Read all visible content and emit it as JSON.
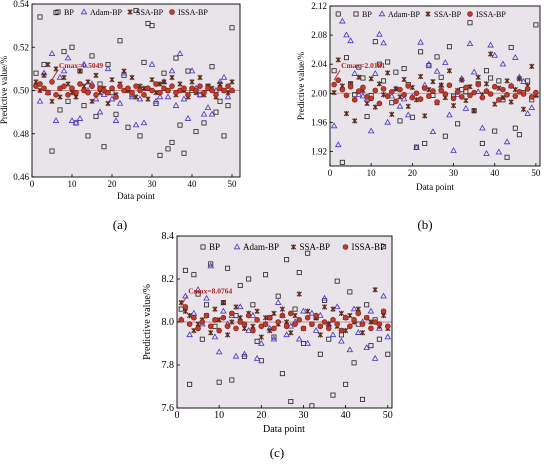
{
  "legend": {
    "bp": "BP",
    "adam": "Adam-BP",
    "ssa": "SSA-BP",
    "issa": "ISSA-BP"
  },
  "colors": {
    "bp": "#222222",
    "adam": "#4433cc",
    "ssa": "#5a2a1a",
    "issa": "#c0392b",
    "issa_edge": "#7a1f10",
    "plot_bg": "#e9e3ea",
    "ref_line": "#d48a8a",
    "annotation": "#b22222"
  },
  "chart_data": [
    {
      "type": "scatter",
      "panel_label": "(a)",
      "xlabel": "Data point",
      "ylabel": "Predictive value/%",
      "xlim": [
        0,
        52
      ],
      "ylim": [
        0.46,
        0.54
      ],
      "xticks": [
        0,
        10,
        20,
        30,
        40,
        50
      ],
      "yticks": [
        0.46,
        0.48,
        0.5,
        0.52,
        0.54
      ],
      "ytick_labels": [
        "0.46",
        "0.48",
        "0.50",
        "0.52",
        "0.54"
      ],
      "ref_y": 0.5,
      "annotation": {
        "text": "Cmax=0.5049",
        "x": 5,
        "y": 0.5049
      },
      "series": [
        {
          "name": "BP",
          "key": "bp",
          "values": [
            0.508,
            0.534,
            0.512,
            0.499,
            0.472,
            0.536,
            0.491,
            0.518,
            0.495,
            0.52,
            0.485,
            0.509,
            0.493,
            0.479,
            0.516,
            0.488,
            0.503,
            0.474,
            0.512,
            0.499,
            0.489,
            0.523,
            0.507,
            0.483,
            0.498,
            0.537,
            0.479,
            0.513,
            0.531,
            0.53,
            0.494,
            0.47,
            0.508,
            0.473,
            0.476,
            0.515,
            0.484,
            0.471,
            0.509,
            0.5,
            0.481,
            0.498,
            0.485,
            0.502,
            0.511,
            0.49,
            0.495,
            0.479,
            0.493,
            0.529
          ]
        },
        {
          "name": "Adam-BP",
          "key": "adam",
          "values": [
            0.503,
            0.495,
            0.508,
            0.499,
            0.517,
            0.486,
            0.506,
            0.509,
            0.515,
            0.486,
            0.485,
            0.487,
            0.512,
            0.5,
            0.503,
            0.496,
            0.49,
            0.498,
            0.51,
            0.496,
            0.486,
            0.494,
            0.508,
            0.5,
            0.497,
            0.484,
            0.496,
            0.485,
            0.501,
            0.512,
            0.495,
            0.497,
            0.504,
            0.497,
            0.509,
            0.493,
            0.517,
            0.496,
            0.487,
            0.509,
            0.501,
            0.498,
            0.489,
            0.492,
            0.489,
            0.5,
            0.504,
            0.506,
            0.497,
            0.5
          ]
        },
        {
          "name": "SSA-BP",
          "key": "ssa",
          "values": [
            0.504,
            0.5,
            0.507,
            0.512,
            0.495,
            0.51,
            0.497,
            0.506,
            0.503,
            0.499,
            0.497,
            0.509,
            0.502,
            0.504,
            0.495,
            0.507,
            0.499,
            0.501,
            0.494,
            0.505,
            0.498,
            0.503,
            0.509,
            0.5,
            0.506,
            0.497,
            0.502,
            0.501,
            0.496,
            0.505,
            0.499,
            0.503,
            0.504,
            0.5,
            0.506,
            0.498,
            0.503,
            0.5,
            0.497,
            0.504,
            0.499,
            0.506,
            0.498,
            0.502,
            0.501,
            0.497,
            0.503,
            0.5,
            0.499,
            0.504
          ]
        },
        {
          "name": "ISSA-BP",
          "key": "issa",
          "values": [
            0.502,
            0.503,
            0.501,
            0.499,
            0.504,
            0.498,
            0.501,
            0.502,
            0.498,
            0.501,
            0.499,
            0.503,
            0.5,
            0.499,
            0.502,
            0.498,
            0.501,
            0.5,
            0.499,
            0.501,
            0.497,
            0.502,
            0.5,
            0.501,
            0.499,
            0.502,
            0.5,
            0.498,
            0.501,
            0.5,
            0.503,
            0.499,
            0.501,
            0.5,
            0.502,
            0.499,
            0.5,
            0.501,
            0.498,
            0.501,
            0.5,
            0.502,
            0.499,
            0.501,
            0.5,
            0.498,
            0.501,
            0.5,
            0.502,
            0.5
          ]
        }
      ]
    },
    {
      "type": "scatter",
      "panel_label": "(b)",
      "xlabel": "Data point",
      "ylabel": "Predictive value/%",
      "xlim": [
        0,
        51
      ],
      "ylim": [
        1.9,
        2.12
      ],
      "xticks": [
        0,
        10,
        20,
        30,
        40,
        50
      ],
      "yticks": [
        1.92,
        1.96,
        2.0,
        2.04,
        2.08,
        2.12
      ],
      "ytick_labels": [
        "1.92",
        "1.96",
        "2.00",
        "2.04",
        "2.08",
        "2.12"
      ],
      "ref_y": 2.0,
      "annotation": {
        "text": "Cmax=2.0181",
        "x": 1,
        "y": 2.0181
      },
      "series": [
        {
          "name": "BP",
          "key": "bp",
          "values": [
            2.031,
            2.109,
            1.905,
            2.049,
            2.013,
            1.998,
            2.036,
            2.021,
            1.968,
            1.997,
            2.071,
            2.04,
            2.017,
            2.043,
            1.987,
            2.029,
            1.962,
            2.034,
            2.012,
            1.967,
            1.926,
            2.057,
            1.931,
            2.038,
            1.997,
            2.05,
            2.022,
            1.941,
            2.064,
            1.996,
            1.958,
            2.005,
            2.002,
            2.097,
            1.976,
            2.013,
            1.931,
            2.031,
            2.021,
            1.948,
            2.017,
            1.991,
            1.912,
            2.063,
            1.952,
            1.943,
            2.001,
            2.017,
            1.991,
            2.094
          ]
        },
        {
          "name": "Adam-BP",
          "key": "adam",
          "values": [
            1.955,
            1.929,
            2.099,
            2.08,
            2.072,
            2.027,
            1.998,
            1.996,
            1.992,
            1.948,
            2.027,
            2.081,
            2.069,
            1.96,
            1.996,
            2.006,
            1.982,
            1.992,
            1.97,
            1.995,
            1.925,
            2.07,
            2.011,
            2.04,
            1.947,
            2.03,
            2.011,
            2.042,
            1.97,
            1.921,
            1.998,
            2.02,
            1.979,
            2.068,
            2.029,
            2.002,
            1.952,
            1.917,
            2.066,
            2.052,
            1.919,
            2.04,
            1.933,
            2.01,
            2.049,
            2.022,
            2.016,
            1.972,
            1.98,
            1.998
          ]
        },
        {
          "name": "SSA-BP",
          "key": "ssa",
          "values": [
            2.001,
            2.046,
            2.01,
            1.972,
            2.013,
            1.962,
            2.022,
            2.004,
            1.986,
            2.02,
            1.981,
            2.013,
            1.998,
            2.028,
            1.971,
            2.006,
            1.995,
            2.019,
            1.982,
            2.008,
            1.991,
            2.023,
            1.969,
            2.005,
            2.016,
            1.987,
            2.011,
            1.994,
            2.031,
            1.983,
            2.004,
            2.018,
            1.99,
            2.009,
            1.976,
            2.022,
            1.998,
            2.013,
            2.054,
            1.985,
            2.007,
            1.994,
            2.017,
            1.988,
            2.005,
            2.02,
            1.978,
            2.01,
            2.037,
            1.997
          ]
        },
        {
          "name": "ISSA-BP",
          "key": "issa",
          "values": [
            2.012,
            2.018,
            2.005,
            1.997,
            2.009,
            1.991,
            2.003,
            2.008,
            1.995,
            1.993,
            2.004,
            1.986,
            2.006,
            1.996,
            2.002,
            1.989,
            2.005,
            1.998,
            2.01,
            1.994,
            2.0,
            1.992,
            2.007,
            1.996,
            2.003,
            1.988,
            2.004,
            1.999,
            2.011,
            1.993,
            2.002,
            1.995,
            2.008,
            1.997,
            2.001,
            2.012,
            1.994,
            2.003,
            1.999,
            2.009,
            1.991,
            2.005,
            1.998,
            2.01,
            1.996,
            2.002,
            1.999,
            2.006,
            1.995,
            2.001
          ]
        }
      ]
    },
    {
      "type": "scatter",
      "panel_label": "(c)",
      "xlabel": "Data point",
      "ylabel": "Predictive value/%",
      "xlim": [
        0,
        51
      ],
      "ylim": [
        7.6,
        8.4
      ],
      "xticks": [
        0,
        10,
        20,
        30,
        40,
        50
      ],
      "yticks": [
        7.6,
        7.8,
        8.0,
        8.2,
        8.4
      ],
      "ytick_labels": [
        "7.6",
        "7.8",
        "8.0",
        "8.2",
        "8.4"
      ],
      "ref_y": 8.0,
      "annotation": {
        "text": "Cmax=8.0764",
        "x": 1,
        "y": 8.0764
      },
      "series": [
        {
          "name": "BP",
          "key": "bp",
          "values": [
            8.06,
            8.24,
            7.71,
            8.22,
            8.13,
            7.92,
            8.08,
            8.27,
            7.98,
            7.72,
            8.09,
            8.25,
            7.73,
            8.03,
            8.17,
            7.84,
            8.2,
            8.08,
            7.91,
            7.82,
            8.22,
            8.02,
            7.93,
            8.12,
            7.76,
            8.29,
            7.63,
            8.06,
            8.23,
            7.9,
            8.32,
            7.61,
            8.02,
            7.85,
            8.1,
            7.92,
            7.66,
            8.19,
            7.94,
            7.71,
            8.14,
            7.81,
            7.99,
            7.64,
            8.08,
            7.89,
            8.01,
            7.92,
            8.35,
            7.85
          ]
        },
        {
          "name": "Adam-BP",
          "key": "adam",
          "values": [
            8.01,
            8.12,
            7.94,
            8.04,
            8.15,
            7.99,
            8.11,
            8.26,
            7.93,
            7.86,
            8.05,
            7.99,
            8.03,
            7.84,
            8.07,
            7.85,
            7.96,
            8.03,
            7.83,
            7.9,
            7.99,
            7.97,
            7.92,
            8.09,
            8.03,
            7.94,
            7.98,
            8.0,
            7.92,
            8.05,
            7.9,
            8.04,
            7.96,
            8.03,
            8.11,
            7.99,
            7.94,
            8.07,
            7.91,
            8.02,
            7.87,
            8.06,
            7.95,
            8.0,
            7.88,
            8.05,
            7.83,
            7.97,
            8.12,
            7.93
          ]
        },
        {
          "name": "SSA-BP",
          "key": "ssa",
          "values": [
            8.09,
            8.05,
            8.03,
            7.96,
            7.99,
            8.01,
            8.03,
            7.95,
            8.06,
            8.01,
            8.09,
            7.94,
            8.0,
            8.07,
            8.02,
            7.97,
            8.04,
            7.98,
            8.05,
            7.93,
            8.02,
            7.96,
            8.04,
            7.99,
            8.06,
            8.0,
            7.95,
            8.03,
            8.13,
            7.97,
            8.05,
            7.99,
            8.02,
            7.94,
            8.07,
            7.99,
            8.06,
            7.98,
            8.04,
            7.96,
            8.03,
            8.0,
            8.06,
            7.95,
            8.02,
            8.0,
            8.15,
            7.98,
            8.03,
            7.97
          ]
        },
        {
          "name": "ISSA-BP",
          "key": "issa",
          "values": [
            8.01,
            8.07,
            7.99,
            8.02,
            7.97,
            8.0,
            8.03,
            7.98,
            8.01,
            7.96,
            8.02,
            7.98,
            8.04,
            7.97,
            8.0,
            7.99,
            8.03,
            7.96,
            8.01,
            7.98,
            7.99,
            8.02,
            7.97,
            8.0,
            8.03,
            7.98,
            8.04,
            7.99,
            8.01,
            7.97,
            8.02,
            7.99,
            8.03,
            7.98,
            8.0,
            7.97,
            8.01,
            7.99,
            7.96,
            8.02,
            7.98,
            8.01,
            8.04,
            7.99,
            8.02,
            7.97,
            8.0,
            7.99,
            8.05,
            7.98
          ]
        }
      ]
    }
  ]
}
